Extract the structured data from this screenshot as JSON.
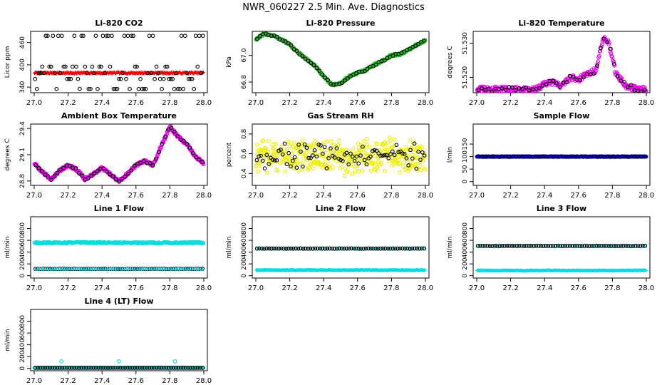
{
  "page_title": "NWR_060227  2.5 Min. Ave. Diagnostics",
  "chart_data": [
    {
      "id": "co2",
      "type": "scatter",
      "title": "Li-820 CO2",
      "xlabel": "",
      "ylabel": "Licor ppm",
      "xlim": [
        27.0,
        28.0
      ],
      "ylim": [
        325,
        490
      ],
      "xticks": [
        "27.0",
        "27.2",
        "27.4",
        "27.6",
        "27.8",
        "28.0"
      ],
      "yticks": [
        "340",
        "400",
        "460"
      ],
      "series": [
        {
          "name": "dense",
          "color": "#ff0000",
          "marker": "plus",
          "pattern": "flat",
          "base": 378,
          "amp": 2,
          "n": 250
        },
        {
          "name": "sparse",
          "color": "#000000",
          "marker": "circle",
          "pattern": "levels",
          "levels": [
            335,
            362,
            378,
            395,
            478
          ],
          "n": 95
        }
      ]
    },
    {
      "id": "pressure",
      "type": "scatter",
      "title": "Li-820 Pressure",
      "xlabel": "",
      "ylabel": "kPa",
      "xlim": [
        27.0,
        28.0
      ],
      "ylim": [
        66.72,
        67.18
      ],
      "xticks": [
        "27.0",
        "27.2",
        "27.4",
        "27.6",
        "27.8",
        "28.0"
      ],
      "yticks": [
        "66.8",
        "67.0"
      ],
      "series": [
        {
          "name": "dense",
          "color": "#22bb22",
          "marker": "circle",
          "pattern": "curve",
          "jitter": 0.008,
          "n": 350,
          "curve": [
            [
              27.0,
              67.12
            ],
            [
              27.05,
              67.16
            ],
            [
              27.1,
              67.15
            ],
            [
              27.15,
              67.12
            ],
            [
              27.2,
              67.08
            ],
            [
              27.25,
              67.02
            ],
            [
              27.3,
              66.97
            ],
            [
              27.35,
              66.92
            ],
            [
              27.4,
              66.84
            ],
            [
              27.45,
              66.78
            ],
            [
              27.5,
              66.79
            ],
            [
              27.55,
              66.84
            ],
            [
              27.6,
              66.87
            ],
            [
              27.65,
              66.89
            ],
            [
              27.7,
              66.93
            ],
            [
              27.75,
              66.96
            ],
            [
              27.8,
              67.0
            ],
            [
              27.85,
              67.01
            ],
            [
              27.9,
              67.04
            ],
            [
              27.95,
              67.08
            ],
            [
              28.0,
              67.11
            ]
          ]
        },
        {
          "name": "sparse",
          "color": "#000000",
          "marker": "circle",
          "pattern": "curve",
          "jitter": 0.006,
          "n": 60,
          "curve": "same"
        }
      ]
    },
    {
      "id": "temperature",
      "type": "scatter",
      "title": "Li-820 Temperature",
      "xlabel": "",
      "ylabel": "degrees C",
      "xlim": [
        27.0,
        28.0
      ],
      "ylim": [
        51.5155,
        51.5335
      ],
      "xticks": [
        "27.0",
        "27.2",
        "27.4",
        "27.6",
        "27.8",
        "28.0"
      ],
      "yticks": [
        "51.520",
        "51.530"
      ],
      "series": [
        {
          "name": "dense",
          "color": "#ee00ee",
          "marker": "circle",
          "pattern": "curve",
          "jitter": 0.0008,
          "n": 300,
          "curve": [
            [
              27.0,
              51.5165
            ],
            [
              27.2,
              51.5165
            ],
            [
              27.35,
              51.5165
            ],
            [
              27.4,
              51.518
            ],
            [
              27.45,
              51.5185
            ],
            [
              27.5,
              51.5175
            ],
            [
              27.55,
              51.52
            ],
            [
              27.6,
              51.5195
            ],
            [
              27.65,
              51.521
            ],
            [
              27.7,
              51.522
            ],
            [
              27.75,
              51.532
            ],
            [
              27.78,
              51.53
            ],
            [
              27.82,
              51.521
            ],
            [
              27.88,
              51.5175
            ],
            [
              27.95,
              51.5165
            ],
            [
              28.0,
              51.5165
            ]
          ]
        },
        {
          "name": "sparse",
          "color": "#000000",
          "marker": "circle",
          "pattern": "curve",
          "jitter": 0.0007,
          "n": 50,
          "curve": "same"
        }
      ]
    },
    {
      "id": "ambient",
      "type": "scatter",
      "title": "Ambient Box Temperature",
      "xlabel": "",
      "ylabel": "degrees C",
      "xlim": [
        27.0,
        28.0
      ],
      "ylim": [
        28.75,
        29.45
      ],
      "xticks": [
        "27.0",
        "27.2",
        "27.4",
        "27.6",
        "27.8",
        "28.0"
      ],
      "yticks": [
        "28.8",
        "29.1",
        "29.4"
      ],
      "series": [
        {
          "name": "dense",
          "color": "#ee00ee",
          "marker": "circle",
          "pattern": "curve",
          "jitter": 0.015,
          "n": 360,
          "curve": [
            [
              27.0,
              29.0
            ],
            [
              27.05,
              28.9
            ],
            [
              27.1,
              28.82
            ],
            [
              27.15,
              28.92
            ],
            [
              27.2,
              28.98
            ],
            [
              27.25,
              28.93
            ],
            [
              27.3,
              28.82
            ],
            [
              27.35,
              28.88
            ],
            [
              27.4,
              28.95
            ],
            [
              27.45,
              28.87
            ],
            [
              27.5,
              28.8
            ],
            [
              27.55,
              28.88
            ],
            [
              27.6,
              28.98
            ],
            [
              27.65,
              29.03
            ],
            [
              27.7,
              28.98
            ],
            [
              27.75,
              29.2
            ],
            [
              27.8,
              29.42
            ],
            [
              27.85,
              29.3
            ],
            [
              27.9,
              29.22
            ],
            [
              27.95,
              29.08
            ],
            [
              28.0,
              29.0
            ]
          ]
        },
        {
          "name": "sparse",
          "color": "#000000",
          "marker": "circle",
          "pattern": "curve",
          "jitter": 0.01,
          "n": 55,
          "curve": "same"
        }
      ]
    },
    {
      "id": "rh",
      "type": "scatter",
      "title": "Gas Stream RH",
      "xlabel": "",
      "ylabel": "percent",
      "xlim": [
        27.0,
        28.0
      ],
      "ylim": [
        0.28,
        0.9
      ],
      "xticks": [
        "27.0",
        "27.2",
        "27.4",
        "27.6",
        "27.8",
        "28.0"
      ],
      "yticks": [
        "0.4",
        "0.6",
        "0.8"
      ],
      "series": [
        {
          "name": "dense",
          "color": "#eeee00",
          "marker": "circle",
          "pattern": "band",
          "base": 0.57,
          "amp": 0.2,
          "n": 420
        },
        {
          "name": "sparse",
          "color": "#000000",
          "marker": "circle",
          "pattern": "band",
          "base": 0.58,
          "amp": 0.14,
          "n": 85
        }
      ]
    },
    {
      "id": "sample",
      "type": "scatter",
      "title": "Sample Flow",
      "xlabel": "",
      "ylabel": "l/min",
      "xlim": [
        27.0,
        28.0
      ],
      "ylim": [
        -15,
        230
      ],
      "xticks": [
        "27.0",
        "27.2",
        "27.4",
        "27.6",
        "27.8",
        "28.0"
      ],
      "yticks": [
        "0",
        "50",
        "100",
        "150"
      ],
      "series": [
        {
          "name": "dense",
          "color": "#0000cc",
          "marker": "circle",
          "pattern": "flat",
          "base": 100,
          "amp": 1,
          "n": 280
        },
        {
          "name": "sparse",
          "color": "#000000",
          "marker": "circle",
          "pattern": "flat",
          "base": 100,
          "amp": 0.5,
          "n": 50
        }
      ]
    },
    {
      "id": "line1",
      "type": "scatter",
      "title": "Line 1 Flow",
      "xlabel": "",
      "ylabel": "ml/min",
      "xlim": [
        27.0,
        28.0
      ],
      "ylim": [
        -40,
        1000
      ],
      "xticks": [
        "27.0",
        "27.2",
        "27.4",
        "27.6",
        "27.8",
        "28.0"
      ],
      "yticks": [
        "0",
        "200",
        "400",
        "600",
        "800"
      ],
      "series": [
        {
          "name": "cyan-high",
          "color": "#00dddd",
          "marker": "circle",
          "pattern": "flat",
          "base": 560,
          "amp": 12,
          "n": 220
        },
        {
          "name": "black-low",
          "color": "#000000",
          "marker": "circle",
          "pattern": "flat",
          "base": 115,
          "amp": 2,
          "n": 70
        },
        {
          "name": "cyan-low",
          "color": "#00dddd",
          "marker": "plus",
          "pattern": "flat",
          "base": 112,
          "amp": 3,
          "n": 80
        }
      ]
    },
    {
      "id": "line2",
      "type": "scatter",
      "title": "Line 2 Flow",
      "xlabel": "",
      "ylabel": "ml/min",
      "xlim": [
        27.0,
        28.0
      ],
      "ylim": [
        -40,
        1000
      ],
      "xticks": [
        "27.0",
        "27.2",
        "27.4",
        "27.6",
        "27.8",
        "28.0"
      ],
      "yticks": [
        "0",
        "200",
        "400",
        "600",
        "800"
      ],
      "series": [
        {
          "name": "cyan-band",
          "color": "#00dddd",
          "marker": "plus",
          "pattern": "flat",
          "base": 95,
          "amp": 6,
          "n": 260
        },
        {
          "name": "cyan-high",
          "color": "#00dddd",
          "marker": "circle",
          "pattern": "flat",
          "base": 460,
          "amp": 4,
          "n": 40
        },
        {
          "name": "black-high",
          "color": "#000000",
          "marker": "circle",
          "pattern": "flat",
          "base": 460,
          "amp": 2,
          "n": 70
        }
      ]
    },
    {
      "id": "line3",
      "type": "scatter",
      "title": "Line 3 Flow",
      "xlabel": "",
      "ylabel": "ml/min",
      "xlim": [
        27.0,
        28.0
      ],
      "ylim": [
        -40,
        1000
      ],
      "xticks": [
        "27.0",
        "27.2",
        "27.4",
        "27.6",
        "27.8",
        "28.0"
      ],
      "yticks": [
        "0",
        "200",
        "400",
        "600",
        "800"
      ],
      "series": [
        {
          "name": "cyan-band",
          "color": "#00dddd",
          "marker": "plus",
          "pattern": "flat",
          "base": 88,
          "amp": 6,
          "n": 260
        },
        {
          "name": "cyan-high",
          "color": "#00dddd",
          "marker": "circle",
          "pattern": "flat",
          "base": 505,
          "amp": 4,
          "n": 40
        },
        {
          "name": "black-high",
          "color": "#000000",
          "marker": "circle",
          "pattern": "flat",
          "base": 505,
          "amp": 2,
          "n": 70
        }
      ]
    },
    {
      "id": "line4",
      "type": "scatter",
      "title": "Line 4 (LT) Flow",
      "xlabel": "",
      "ylabel": "ml/min",
      "xlim": [
        27.0,
        28.0
      ],
      "ylim": [
        -40,
        1000
      ],
      "xticks": [
        "27.0",
        "27.2",
        "27.4",
        "27.6",
        "27.8",
        "28.0"
      ],
      "yticks": [
        "0",
        "200",
        "400",
        "600",
        "800"
      ],
      "series": [
        {
          "name": "cyan-base",
          "color": "#00dddd",
          "marker": "circle",
          "pattern": "flat",
          "base": 10,
          "amp": 2,
          "n": 200
        },
        {
          "name": "black-base",
          "color": "#000000",
          "marker": "circle",
          "pattern": "flat",
          "base": 10,
          "amp": 1,
          "n": 70
        },
        {
          "name": "cyan-spikes",
          "color": "#00dddd",
          "marker": "circle",
          "pattern": "points",
          "points": [
            [
              27.16,
              120
            ],
            [
              27.5,
              120
            ],
            [
              27.83,
              120
            ]
          ]
        }
      ]
    }
  ]
}
